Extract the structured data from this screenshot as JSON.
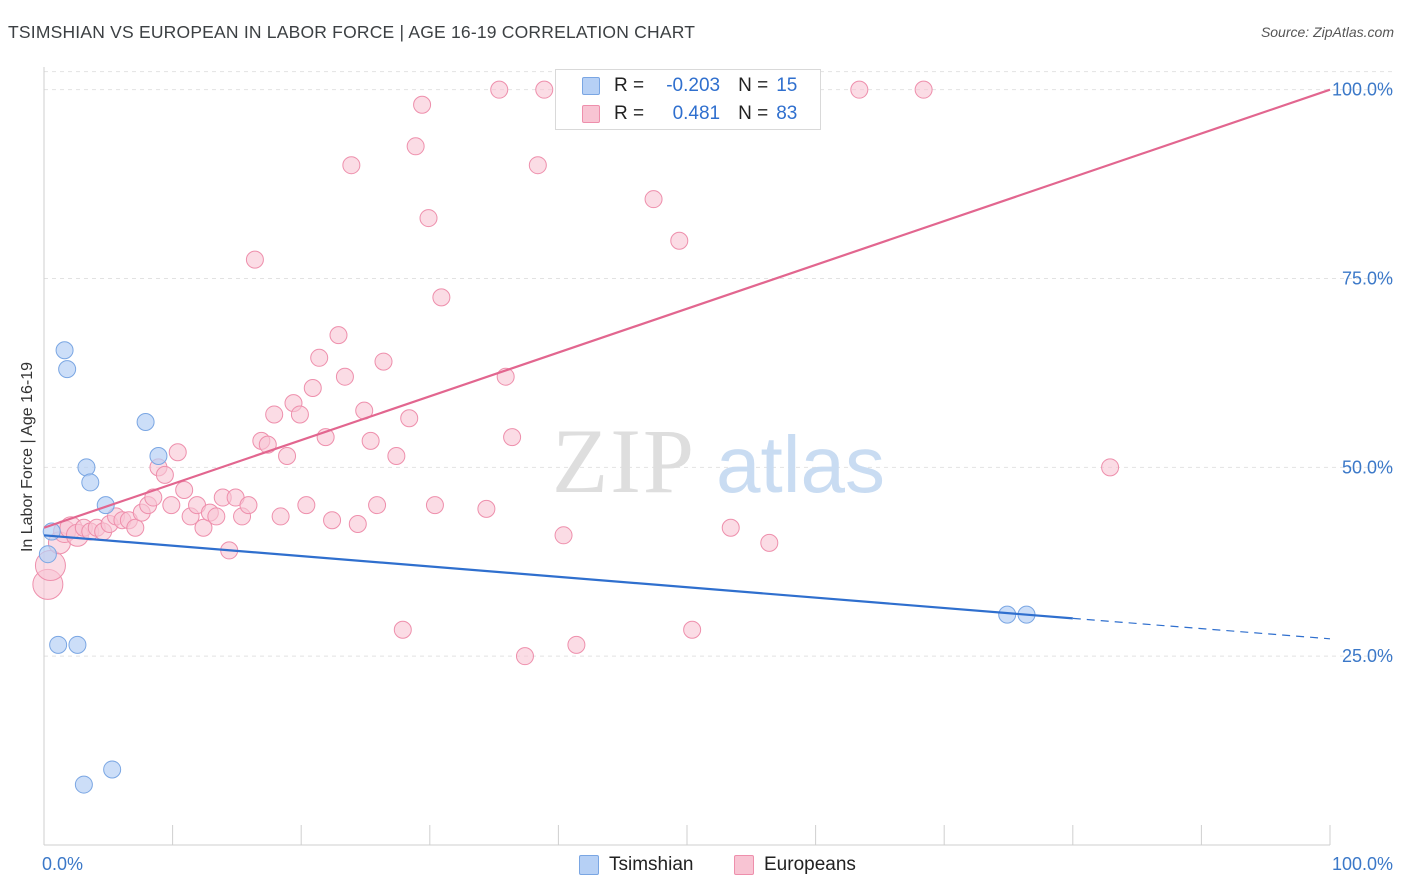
{
  "title": "TSIMSHIAN VS EUROPEAN IN LABOR FORCE | AGE 16-19 CORRELATION CHART",
  "source": "Source: ZipAtlas.com",
  "watermark": {
    "zip": "ZIP",
    "atlas": "atlas"
  },
  "legend": {
    "rows": [
      {
        "r_label": "R =",
        "r_value": "-0.203",
        "n_label": "N =",
        "n_value": "15"
      },
      {
        "r_label": "R =",
        "r_value": "0.481",
        "n_label": "N =",
        "n_value": "83"
      }
    ]
  },
  "bottom_legend": [
    "Tsimshian",
    "Europeans"
  ],
  "colors": {
    "tsimshian_fill": "#b6d0f5",
    "tsimshian_stroke": "#7aa6e3",
    "tsimshian_line": "#2f6fce",
    "europeans_fill": "#f8c4d3",
    "europeans_stroke": "#ee8fac",
    "europeans_line": "#e2668f",
    "tick_label": "#3b78c8",
    "grid": "#e2e2e2"
  },
  "chart_data": {
    "type": "scatter",
    "title": "TSIMSHIAN VS EUROPEAN IN LABOR FORCE | AGE 16-19 CORRELATION CHART",
    "xlabel": "",
    "ylabel": "In Labor Force | Age 16-19",
    "xlim": [
      0,
      100
    ],
    "ylim": [
      0,
      103
    ],
    "x_tick_labels": [
      "0.0%",
      "100.0%"
    ],
    "y_ticks": [
      25,
      50,
      75,
      100
    ],
    "y_tick_labels": [
      "25.0%",
      "50.0%",
      "75.0%",
      "100.0%"
    ],
    "grid": "horizontal dashed",
    "series": [
      {
        "name": "Tsimshian",
        "points": [
          [
            0.3,
            38.5
          ],
          [
            0.6,
            41.5
          ],
          [
            1.1,
            26.5
          ],
          [
            1.6,
            65.5
          ],
          [
            1.8,
            63.0
          ],
          [
            2.6,
            26.5
          ],
          [
            3.1,
            8.0
          ],
          [
            3.3,
            50.0
          ],
          [
            3.6,
            48.0
          ],
          [
            4.8,
            45.0
          ],
          [
            5.3,
            10.0
          ],
          [
            7.9,
            56.0
          ],
          [
            8.9,
            51.5
          ],
          [
            74.9,
            30.5
          ],
          [
            76.4,
            30.5
          ]
        ],
        "trend": {
          "x0": 0,
          "y0": 41.0,
          "x1": 80,
          "y1": 30.0,
          "dash_to_x": 100,
          "dash_to_y": 27.3
        }
      },
      {
        "name": "Europeans",
        "points": [
          [
            0.3,
            34.5
          ],
          [
            0.5,
            37.0
          ],
          [
            1.2,
            40.0
          ],
          [
            1.6,
            41.5
          ],
          [
            2.1,
            42.0
          ],
          [
            2.6,
            41.0
          ],
          [
            3.1,
            42.0
          ],
          [
            3.6,
            41.5
          ],
          [
            4.1,
            42.0
          ],
          [
            4.6,
            41.5
          ],
          [
            5.1,
            42.5
          ],
          [
            5.6,
            43.5
          ],
          [
            6.1,
            43.0
          ],
          [
            6.6,
            43.0
          ],
          [
            7.1,
            42.0
          ],
          [
            7.6,
            44.0
          ],
          [
            8.1,
            45.0
          ],
          [
            8.5,
            46.0
          ],
          [
            8.9,
            50.0
          ],
          [
            9.4,
            49.0
          ],
          [
            9.9,
            45.0
          ],
          [
            10.4,
            52.0
          ],
          [
            10.9,
            47.0
          ],
          [
            11.4,
            43.5
          ],
          [
            11.9,
            45.0
          ],
          [
            12.4,
            42.0
          ],
          [
            12.9,
            44.0
          ],
          [
            13.4,
            43.5
          ],
          [
            13.9,
            46.0
          ],
          [
            14.4,
            39.0
          ],
          [
            14.9,
            46.0
          ],
          [
            15.4,
            43.5
          ],
          [
            15.9,
            45.0
          ],
          [
            16.4,
            77.5
          ],
          [
            16.9,
            53.5
          ],
          [
            17.4,
            53.0
          ],
          [
            17.9,
            57.0
          ],
          [
            18.4,
            43.5
          ],
          [
            18.9,
            51.5
          ],
          [
            19.4,
            58.5
          ],
          [
            19.9,
            57.0
          ],
          [
            20.4,
            45.0
          ],
          [
            20.9,
            60.5
          ],
          [
            21.4,
            64.5
          ],
          [
            21.9,
            54.0
          ],
          [
            22.4,
            43.0
          ],
          [
            22.9,
            67.5
          ],
          [
            23.4,
            62.0
          ],
          [
            23.9,
            90.0
          ],
          [
            24.4,
            42.5
          ],
          [
            24.9,
            57.5
          ],
          [
            25.4,
            53.5
          ],
          [
            25.9,
            45.0
          ],
          [
            26.4,
            64.0
          ],
          [
            27.4,
            51.5
          ],
          [
            27.9,
            28.5
          ],
          [
            28.4,
            56.5
          ],
          [
            28.9,
            92.5
          ],
          [
            29.4,
            98.0
          ],
          [
            29.9,
            83.0
          ],
          [
            30.4,
            45.0
          ],
          [
            30.9,
            72.5
          ],
          [
            35.4,
            100.0
          ],
          [
            34.4,
            44.5
          ],
          [
            35.9,
            62.0
          ],
          [
            36.4,
            54.0
          ],
          [
            37.4,
            25.0
          ],
          [
            38.4,
            90.0
          ],
          [
            38.9,
            100.0
          ],
          [
            40.4,
            41.0
          ],
          [
            41.4,
            26.5
          ],
          [
            44.9,
            100.0
          ],
          [
            45.9,
            100.0
          ],
          [
            47.9,
            100.0
          ],
          [
            48.4,
            100.0
          ],
          [
            47.4,
            85.5
          ],
          [
            49.4,
            80.0
          ],
          [
            50.4,
            28.5
          ],
          [
            53.4,
            42.0
          ],
          [
            56.4,
            40.0
          ],
          [
            63.4,
            100.0
          ],
          [
            68.4,
            100.0
          ],
          [
            82.9,
            50.0
          ]
        ],
        "trend": {
          "x0": 0,
          "y0": 42.0,
          "x1": 100,
          "y1": 100.0
        }
      }
    ]
  }
}
